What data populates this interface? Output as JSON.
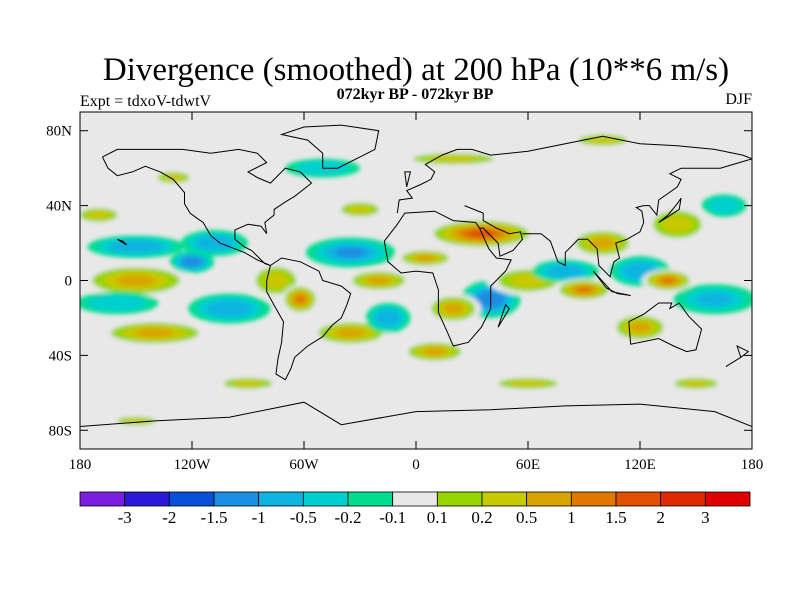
{
  "header": {
    "title": "Divergence (smoothed) at 200 hPa (10**6 m/s)",
    "subtitle": "072kyr BP - 072kyr BP",
    "experiment": "Expt = tdxoV-tdwtV",
    "season": "DJF"
  },
  "chart_data": {
    "type": "heatmap",
    "title": "Divergence (smoothed) at 200 hPa (10**6 m/s)",
    "subtitle": "072kyr BP - 072kyr BP",
    "x_axis": {
      "range": [
        -180,
        180
      ],
      "ticks": [
        -180,
        -120,
        -60,
        0,
        60,
        120,
        180
      ],
      "tick_labels": [
        "180",
        "120W",
        "60W",
        "0",
        "60E",
        "120E",
        "180"
      ]
    },
    "y_axis": {
      "range": [
        -90,
        90
      ],
      "ticks": [
        80,
        40,
        0,
        -40,
        -80
      ],
      "tick_labels": [
        "80N",
        "40N",
        "0",
        "40S",
        "80S"
      ]
    },
    "colorbar": {
      "levels": [
        -3,
        -2,
        -1.5,
        -1,
        -0.5,
        -0.2,
        -0.1,
        0.1,
        0.2,
        0.5,
        1,
        1.5,
        2,
        3
      ],
      "level_labels": [
        "-3",
        "-2",
        "-1.5",
        "-1",
        "-0.5",
        "-0.2",
        "-0.1",
        "0.1",
        "0.2",
        "0.5",
        "1",
        "1.5",
        "2",
        "3"
      ],
      "colors": [
        "#7a1fe0",
        "#2a1ad8",
        "#0a4fd8",
        "#1a8ee0",
        "#10b4e0",
        "#00cfd0",
        "#00dd90",
        "#e8e8e8",
        "#98d400",
        "#c8c800",
        "#d8a400",
        "#e07800",
        "#e05000",
        "#e02800",
        "#e00000"
      ]
    },
    "missing_color": "#e8e8e8",
    "field_blobs": [
      {
        "lon": -150,
        "lat": 0,
        "rx": 30,
        "ry": 9,
        "value": 0.8
      },
      {
        "lon": -140,
        "lat": -28,
        "rx": 30,
        "ry": 7,
        "value": 0.6
      },
      {
        "lon": -150,
        "lat": 18,
        "rx": 26,
        "ry": 6,
        "value": -0.6
      },
      {
        "lon": -170,
        "lat": 35,
        "rx": 14,
        "ry": 5,
        "value": 0.3
      },
      {
        "lon": -160,
        "lat": -12,
        "rx": 22,
        "ry": 6,
        "value": -0.4
      },
      {
        "lon": -120,
        "lat": 10,
        "rx": 12,
        "ry": 6,
        "value": -1.2
      },
      {
        "lon": -108,
        "lat": 20,
        "rx": 18,
        "ry": 7,
        "value": -0.7
      },
      {
        "lon": -100,
        "lat": -15,
        "rx": 22,
        "ry": 8,
        "value": -0.6
      },
      {
        "lon": -75,
        "lat": 0,
        "rx": 15,
        "ry": 10,
        "value": 0.5
      },
      {
        "lon": -62,
        "lat": -10,
        "rx": 10,
        "ry": 8,
        "value": 1.2
      },
      {
        "lon": -35,
        "lat": 15,
        "rx": 24,
        "ry": 8,
        "value": -1.0
      },
      {
        "lon": -35,
        "lat": -28,
        "rx": 22,
        "ry": 7,
        "value": 0.7
      },
      {
        "lon": -20,
        "lat": 0,
        "rx": 18,
        "ry": 6,
        "value": 1.0
      },
      {
        "lon": -15,
        "lat": -20,
        "rx": 12,
        "ry": 8,
        "value": -0.8
      },
      {
        "lon": -30,
        "lat": 38,
        "rx": 14,
        "ry": 5,
        "value": 0.4
      },
      {
        "lon": 5,
        "lat": 12,
        "rx": 16,
        "ry": 5,
        "value": 0.8
      },
      {
        "lon": 35,
        "lat": 25,
        "rx": 30,
        "ry": 8,
        "value": 1.6
      },
      {
        "lon": 40,
        "lat": -10,
        "rx": 16,
        "ry": 10,
        "value": -1.2
      },
      {
        "lon": 20,
        "lat": -15,
        "rx": 15,
        "ry": 8,
        "value": 1.0
      },
      {
        "lon": 10,
        "lat": -38,
        "rx": 18,
        "ry": 6,
        "value": 0.6
      },
      {
        "lon": 60,
        "lat": 0,
        "rx": 22,
        "ry": 8,
        "value": 0.5
      },
      {
        "lon": 80,
        "lat": 5,
        "rx": 18,
        "ry": 6,
        "value": -0.8
      },
      {
        "lon": 90,
        "lat": -5,
        "rx": 16,
        "ry": 6,
        "value": 1.1
      },
      {
        "lon": 100,
        "lat": 20,
        "rx": 18,
        "ry": 8,
        "value": 0.6
      },
      {
        "lon": 120,
        "lat": 5,
        "rx": 16,
        "ry": 8,
        "value": -0.8
      },
      {
        "lon": 135,
        "lat": 0,
        "rx": 14,
        "ry": 6,
        "value": 1.2
      },
      {
        "lon": 140,
        "lat": 30,
        "rx": 18,
        "ry": 10,
        "value": 0.5
      },
      {
        "lon": 160,
        "lat": -10,
        "rx": 22,
        "ry": 8,
        "value": -0.5
      },
      {
        "lon": 120,
        "lat": -25,
        "rx": 16,
        "ry": 8,
        "value": 0.6
      },
      {
        "lon": 165,
        "lat": 40,
        "rx": 12,
        "ry": 6,
        "value": -0.4
      },
      {
        "lon": -130,
        "lat": 55,
        "rx": 12,
        "ry": 4,
        "value": 0.4
      },
      {
        "lon": -50,
        "lat": 60,
        "rx": 20,
        "ry": 5,
        "value": -0.3
      },
      {
        "lon": 20,
        "lat": 65,
        "rx": 30,
        "ry": 4,
        "value": 0.3
      },
      {
        "lon": 100,
        "lat": 75,
        "rx": 18,
        "ry": 4,
        "value": 0.3
      },
      {
        "lon": -90,
        "lat": -55,
        "rx": 18,
        "ry": 4,
        "value": 0.3
      },
      {
        "lon": 60,
        "lat": -55,
        "rx": 22,
        "ry": 4,
        "value": 0.3
      },
      {
        "lon": 150,
        "lat": -55,
        "rx": 16,
        "ry": 4,
        "value": 0.3
      },
      {
        "lon": -150,
        "lat": -75,
        "rx": 14,
        "ry": 3,
        "value": 0.3
      }
    ]
  }
}
